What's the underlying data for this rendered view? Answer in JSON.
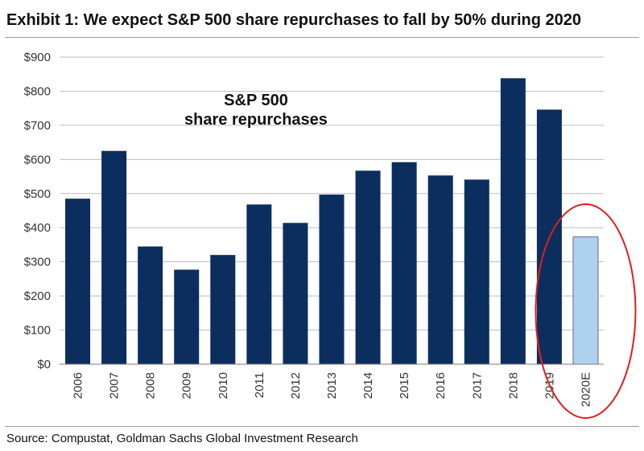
{
  "title": "Exhibit 1: We expect S&P 500 share repurchases to fall by 50% during 2020",
  "source": "Source: Compustat, Goldman Sachs Global Investment Research",
  "colors": {
    "actual": "#0b2e5e",
    "estimate": "#aed1ee",
    "estimate_border": "#5a6f88",
    "highlight": "#e01e1e",
    "grid": "#bdbdbd"
  },
  "chart_data": {
    "type": "bar",
    "categories": [
      "2006",
      "2007",
      "2008",
      "2009",
      "2010",
      "2011",
      "2012",
      "2013",
      "2014",
      "2015",
      "2016",
      "2017",
      "2018",
      "2019",
      "2020E"
    ],
    "values": [
      485,
      625,
      345,
      277,
      320,
      468,
      414,
      497,
      567,
      592,
      553,
      541,
      838,
      746,
      373
    ],
    "estimate_categories": [
      "2020E"
    ],
    "ylim": [
      0,
      900
    ],
    "yticks": [
      0,
      100,
      200,
      300,
      400,
      500,
      600,
      700,
      800,
      900
    ],
    "ytick_labels": [
      "$0",
      "$100",
      "$200",
      "$300",
      "$400",
      "$500",
      "$600",
      "$700",
      "$800",
      "$900"
    ],
    "grid": true,
    "annotation": {
      "line1": "S&P 500",
      "line2": "share repurchases"
    },
    "highlight": "2020E"
  }
}
